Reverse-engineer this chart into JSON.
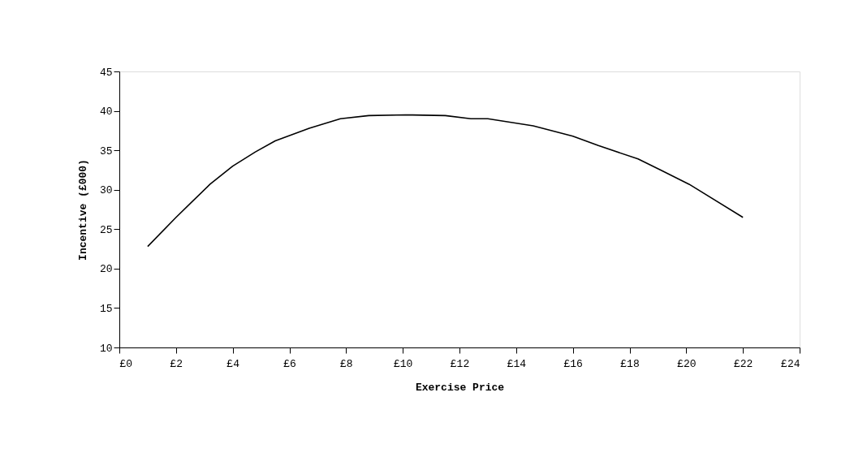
{
  "chart_data": {
    "type": "line",
    "xlabel": "Exercise Price",
    "ylabel": "Incentive (£000)",
    "x": [
      1,
      2,
      3.2,
      4,
      4.8,
      5.5,
      6.7,
      7.8,
      8.8,
      10.1,
      11.5,
      12.4,
      13,
      14.6,
      16,
      16.9,
      18.3,
      19.1,
      20.1,
      22
    ],
    "series": [
      {
        "color": "#000000",
        "values": [
          22.8,
          26.5,
          30.7,
          33.0,
          34.8,
          36.2,
          37.8,
          39.0,
          39.4,
          39.5,
          39.4,
          39.0,
          39.0,
          38.1,
          36.8,
          35.6,
          33.9,
          32.5,
          30.7,
          26.5
        ]
      }
    ],
    "xlim": [
      0,
      24
    ],
    "xticks": [
      {
        "value": 0,
        "label": "£0"
      },
      {
        "value": 2,
        "label": "£2"
      },
      {
        "value": 4,
        "label": "£4"
      },
      {
        "value": 6,
        "label": "£6"
      },
      {
        "value": 8,
        "label": "£8"
      },
      {
        "value": 10,
        "label": "£10"
      },
      {
        "value": 12,
        "label": "£12"
      },
      {
        "value": 14,
        "label": "£14"
      },
      {
        "value": 16,
        "label": "£16"
      },
      {
        "value": 18,
        "label": "£18"
      },
      {
        "value": 20,
        "label": "£20"
      },
      {
        "value": 22,
        "label": "£22"
      },
      {
        "value": 24,
        "label": "£24"
      }
    ],
    "ylim": [
      10,
      45
    ],
    "yticks": [
      10,
      15,
      20,
      25,
      30,
      35,
      40,
      45
    ],
    "grid": false,
    "marker": "none",
    "line_style": "solid"
  }
}
